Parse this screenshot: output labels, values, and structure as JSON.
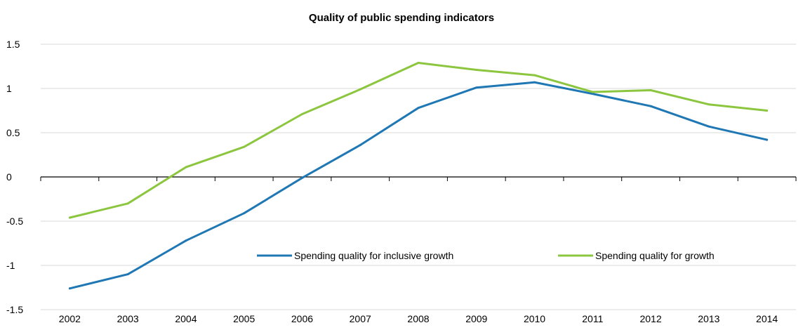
{
  "chart_data": {
    "type": "line",
    "title": "Quality of public spending indicators",
    "xlabel": "",
    "ylabel": "",
    "x": [
      "2002",
      "2003",
      "2004",
      "2005",
      "2006",
      "2007",
      "2008",
      "2009",
      "2010",
      "2011",
      "2012",
      "2013",
      "2014"
    ],
    "ylim": [
      -1.5,
      1.5
    ],
    "yticks": [
      -1.5,
      -1,
      -0.5,
      0,
      0.5,
      1,
      1.5
    ],
    "ytick_labels": [
      "-1.5",
      "-1",
      "-0.5",
      "0",
      "0.5",
      "1",
      "1.5"
    ],
    "grid": true,
    "legend_position": "center-bottom, inside",
    "series": [
      {
        "name": "Spending quality for inclusive growth",
        "color": "#1f77b4",
        "values": [
          -1.26,
          -1.1,
          -0.72,
          -0.41,
          -0.01,
          0.36,
          0.78,
          1.01,
          1.07,
          0.94,
          0.8,
          0.57,
          0.42
        ]
      },
      {
        "name": "Spending quality for growth",
        "color": "#8cc63f",
        "values": [
          -0.46,
          -0.3,
          0.11,
          0.34,
          0.71,
          0.99,
          1.29,
          1.21,
          1.15,
          0.96,
          0.98,
          0.82,
          0.75
        ]
      }
    ]
  }
}
